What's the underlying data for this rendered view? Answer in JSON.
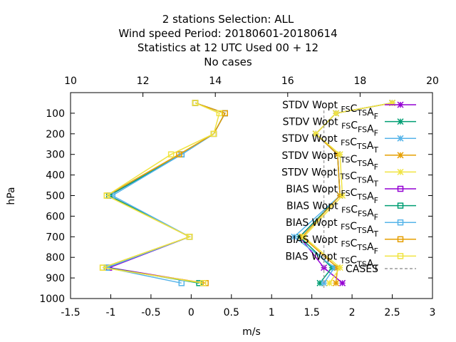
{
  "chart_data": {
    "type": "line",
    "title_lines": [
      "2 stations Selection: ALL",
      "Wind speed  Period: 20180601-20180614",
      "Statistics at 12 UTC  Used  00 + 12",
      "No cases"
    ],
    "xlabel": "m/s",
    "ylabel": "hPa",
    "x_range": [
      -1.5,
      3
    ],
    "x2_range": [
      10,
      20
    ],
    "y_range": [
      1000,
      0
    ],
    "x_ticks": [
      "-1.5",
      "-1",
      "-0.5",
      "0",
      "0.5",
      "1",
      "1.5",
      "2",
      "2.5",
      "3"
    ],
    "x2_ticks": [
      "10",
      "12",
      "14",
      "16",
      "18",
      "20"
    ],
    "y_ticks": [
      "100",
      "200",
      "300",
      "400",
      "500",
      "600",
      "700",
      "800",
      "900",
      "1000"
    ],
    "grid": false,
    "legend_position": "top-right",
    "levels": [
      50,
      100,
      200,
      300,
      500,
      700,
      850,
      925
    ],
    "series": [
      {
        "name_main": "STDV Wopt",
        "sub1": "FS",
        "main2": "C",
        "sub2": "TS",
        "main3": "A",
        "sub3": "F",
        "color": "#9400d3",
        "marker": "x",
        "values": [
          2.5,
          1.8,
          1.55,
          1.82,
          1.85,
          1.35,
          1.65,
          1.88
        ]
      },
      {
        "name_main": "STDV Wopt",
        "sub1": "FS",
        "main2": "C",
        "sub2": "FS",
        "main3": "A",
        "sub3": "F",
        "color": "#009e73",
        "marker": "x",
        "values": [
          2.5,
          1.8,
          1.55,
          1.82,
          1.85,
          1.35,
          1.75,
          1.6
        ]
      },
      {
        "name_main": "STDV Wopt",
        "sub1": "FS",
        "main2": "C",
        "sub2": "TS",
        "main3": "A",
        "sub3": "T",
        "color": "#56b4e9",
        "marker": "x",
        "values": [
          2.5,
          1.8,
          1.55,
          1.82,
          1.85,
          1.28,
          1.78,
          1.65
        ]
      },
      {
        "name_main": "STDV Wopt",
        "sub1": "TS",
        "main2": "C",
        "sub2": "TS",
        "main3": "A",
        "sub3": "F",
        "color": "#e69f00",
        "marker": "x",
        "values": [
          2.5,
          1.8,
          1.55,
          1.82,
          1.85,
          1.38,
          1.82,
          1.8
        ]
      },
      {
        "name_main": "STDV Wopt",
        "sub1": "TS",
        "main2": "C",
        "sub2": "TS",
        "main3": "A",
        "sub3": "T",
        "color": "#f0e442",
        "marker": "x",
        "values": [
          2.5,
          1.8,
          1.55,
          1.85,
          1.88,
          1.4,
          1.85,
          1.72
        ]
      },
      {
        "name_main": "BIAS Wopt",
        "sub1": "FS",
        "main2": "C",
        "sub2": "TS",
        "main3": "A",
        "sub3": "F",
        "color": "#9400d3",
        "marker": "square",
        "values": [
          0.05,
          0.42,
          0.28,
          -0.12,
          -1.02,
          -0.02,
          -1.02,
          0.15
        ]
      },
      {
        "name_main": "BIAS Wopt",
        "sub1": "FS",
        "main2": "C",
        "sub2": "FS",
        "main3": "A",
        "sub3": "F",
        "color": "#009e73",
        "marker": "square",
        "values": [
          0.05,
          0.42,
          0.28,
          -0.12,
          -1.02,
          -0.02,
          -1.05,
          0.1
        ]
      },
      {
        "name_main": "BIAS Wopt",
        "sub1": "FS",
        "main2": "C",
        "sub2": "TS",
        "main3": "A",
        "sub3": "T",
        "color": "#56b4e9",
        "marker": "square",
        "values": [
          0.05,
          0.42,
          0.28,
          -0.12,
          -0.98,
          -0.02,
          -1.05,
          -0.12
        ]
      },
      {
        "name_main": "BIAS Wopt",
        "sub1": "FS",
        "main2": "C",
        "sub2": "TS",
        "main3": "A",
        "sub3": "F",
        "color": "#e69f00",
        "marker": "square",
        "values": [
          0.05,
          0.42,
          0.28,
          -0.15,
          -1.05,
          -0.02,
          -1.1,
          0.18
        ]
      },
      {
        "name_main": "BIAS Wopt",
        "sub1": "TS",
        "main2": "C",
        "sub2": "TS",
        "main3": "A",
        "sub3": "T",
        "color": "#f0e442",
        "marker": "square",
        "values": [
          0.05,
          0.35,
          0.28,
          -0.25,
          -1.05,
          -0.02,
          -1.1,
          0.15
        ]
      }
    ],
    "cases": {
      "name": "CASES",
      "color": "#999999",
      "x2": 17,
      "values": [
        null,
        null,
        null,
        null,
        null,
        null,
        null,
        null
      ]
    }
  }
}
